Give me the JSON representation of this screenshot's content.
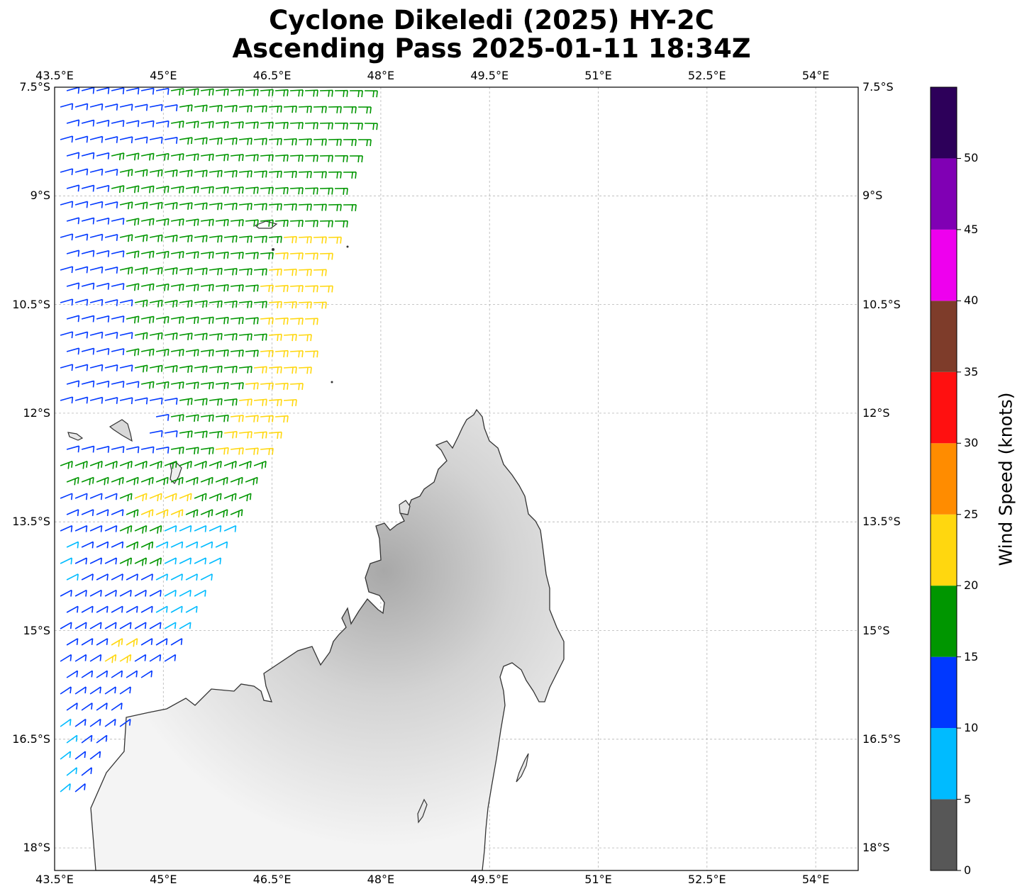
{
  "title": {
    "line1": "Cyclone Dikeledi (2025) HY-2C",
    "line2": "Ascending Pass 2025-01-11 18:34Z"
  },
  "axes": {
    "lon_labels": [
      "43.5°E",
      "45°E",
      "46.5°E",
      "48°E",
      "49.5°E",
      "51°E",
      "52.5°E",
      "54°E"
    ],
    "lat_labels": [
      "7.5°S",
      "9°S",
      "10.5°S",
      "12°S",
      "13.5°S",
      "15°S",
      "16.5°S",
      "18°S"
    ],
    "lon_range": [
      43.5,
      54.6
    ],
    "lat_range": [
      -7.5,
      -18.3
    ],
    "grid": true
  },
  "colorbar": {
    "label": "Wind Speed (knots)",
    "ticks": [
      "0",
      "5",
      "10",
      "15",
      "20",
      "25",
      "30",
      "35",
      "40",
      "45",
      "50"
    ],
    "bins": [
      {
        "min": 0,
        "max": 5,
        "color": "#575757"
      },
      {
        "min": 5,
        "max": 10,
        "color": "#00bbff"
      },
      {
        "min": 10,
        "max": 15,
        "color": "#0038ff"
      },
      {
        "min": 15,
        "max": 20,
        "color": "#009600"
      },
      {
        "min": 20,
        "max": 25,
        "color": "#ffd70f"
      },
      {
        "min": 25,
        "max": 30,
        "color": "#ff8c00"
      },
      {
        "min": 30,
        "max": 35,
        "color": "#ff1010"
      },
      {
        "min": 35,
        "max": 40,
        "color": "#7e3c2a"
      },
      {
        "min": 40,
        "max": 45,
        "color": "#ee00ee"
      },
      {
        "min": 45,
        "max": 50,
        "color": "#8000b4"
      },
      {
        "min": 50,
        "max": 55,
        "color": "#2d005a"
      }
    ]
  },
  "map_layers": {
    "land_outline": "Madagascar (northern)",
    "islands": "Comoros",
    "wind_barb_colors": [
      "#0038ff",
      "#009600",
      "#ffd70f",
      "#00bbff"
    ]
  }
}
